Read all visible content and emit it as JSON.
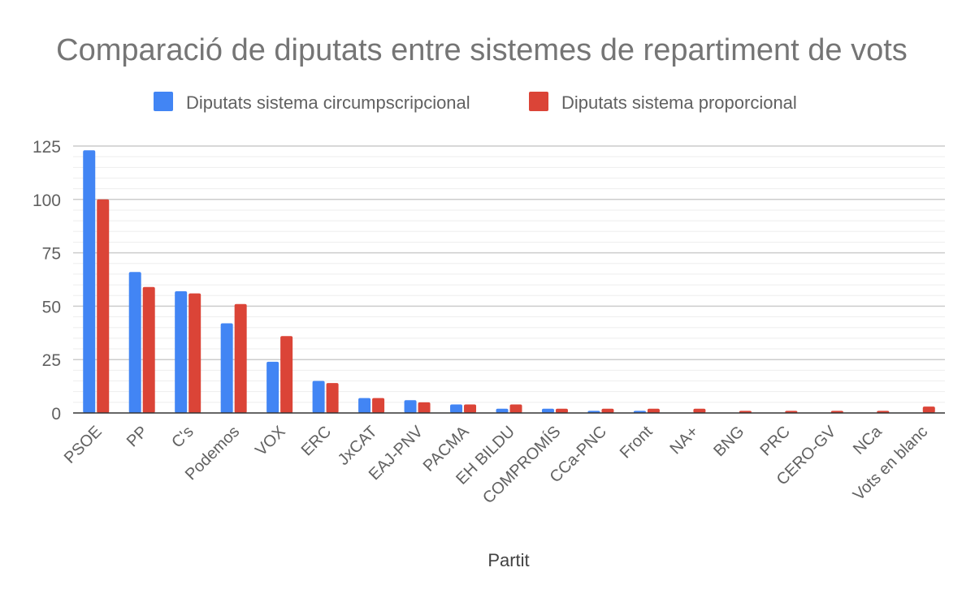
{
  "chart_data": {
    "type": "bar",
    "title": "Comparació de diputats entre sistemes de repartiment de vots",
    "xlabel": "Partit",
    "ylabel": "",
    "ylim": [
      0,
      125
    ],
    "yticks": [
      0,
      25,
      50,
      75,
      100,
      125
    ],
    "grid": true,
    "legend_position": "top",
    "categories": [
      "PSOE",
      "PP",
      "C's",
      "Podemos",
      "VOX",
      "ERC",
      "JxCAT",
      "EAJ-PNV",
      "PACMA",
      "EH BILDU",
      "COMPROMÍS",
      "CCa-PNC",
      "Front",
      "NA+",
      "BNG",
      "PRC",
      "CERO-GV",
      "NCa",
      "Vots en blanc"
    ],
    "series": [
      {
        "name": "Diputats sistema circumpscripcional",
        "color": "#4285F4",
        "values": [
          123,
          66,
          57,
          42,
          24,
          15,
          7,
          6,
          4,
          2,
          2,
          1,
          1,
          0,
          0,
          0,
          0,
          0,
          0
        ]
      },
      {
        "name": "Diputats sistema proporcional",
        "color": "#DB4437",
        "values": [
          100,
          59,
          56,
          51,
          36,
          14,
          7,
          5,
          4,
          4,
          2,
          2,
          2,
          2,
          1,
          1,
          1,
          1,
          3
        ]
      }
    ]
  }
}
